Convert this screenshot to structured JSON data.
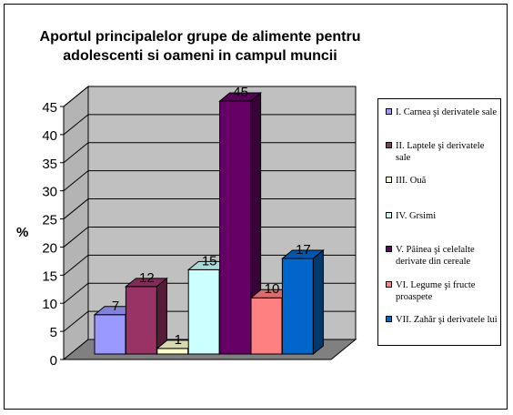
{
  "chart_data": {
    "type": "bar",
    "title_lines": [
      "Aportul principalelor grupe de alimente pentru",
      "adolescenti si oameni in campul muncii"
    ],
    "ylabel": "%",
    "xlabel": "",
    "ylim": [
      0,
      45
    ],
    "yticks": [
      0,
      5,
      10,
      15,
      20,
      25,
      30,
      35,
      40,
      45
    ],
    "grid": true,
    "legend_position": "right",
    "categories": [
      "I. Carnea şi derivatele sale",
      "II. Laptele şi derivatele sale",
      "III. Ouă",
      "IV. Grsimi",
      "V. Pâinea şi celelalte derivate din cereale",
      "VI. Legume şi fructe proaspete",
      "VII. Zahăr şi derivatele lui"
    ],
    "values": [
      7,
      12,
      1,
      15,
      45,
      10,
      17
    ],
    "colors": [
      "#9999ff",
      "#993366",
      "#ffffcc",
      "#ccffff",
      "#660066",
      "#ff8080",
      "#0066cc"
    ]
  }
}
